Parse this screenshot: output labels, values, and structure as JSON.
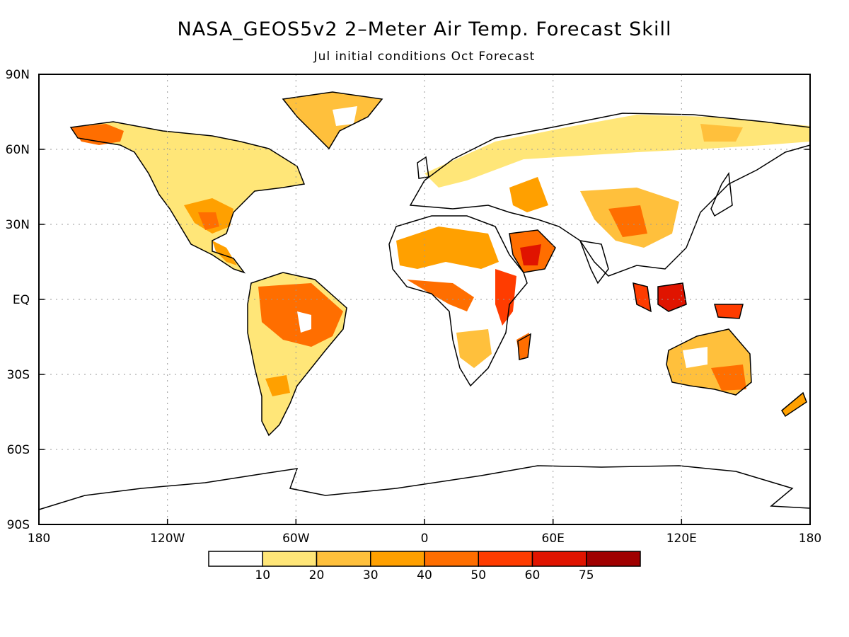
{
  "title": "NASA_GEOS5v2 2–Meter Air Temp. Forecast Skill",
  "subtitle": "Jul initial conditions  Oct Forecast",
  "lat_ticks": [
    "90N",
    "60N",
    "30N",
    "EQ",
    "30S",
    "60S",
    "90S"
  ],
  "lon_ticks": [
    "180",
    "120W",
    "60W",
    "0",
    "60E",
    "120E",
    "180"
  ],
  "colorbar": {
    "labels": [
      "10",
      "20",
      "30",
      "40",
      "50",
      "60",
      "75"
    ],
    "colors": [
      "#ffffff",
      "#ffe678",
      "#ffc03c",
      "#ffa000",
      "#ff6e00",
      "#ff3c00",
      "#e01400",
      "#a00000"
    ]
  }
}
